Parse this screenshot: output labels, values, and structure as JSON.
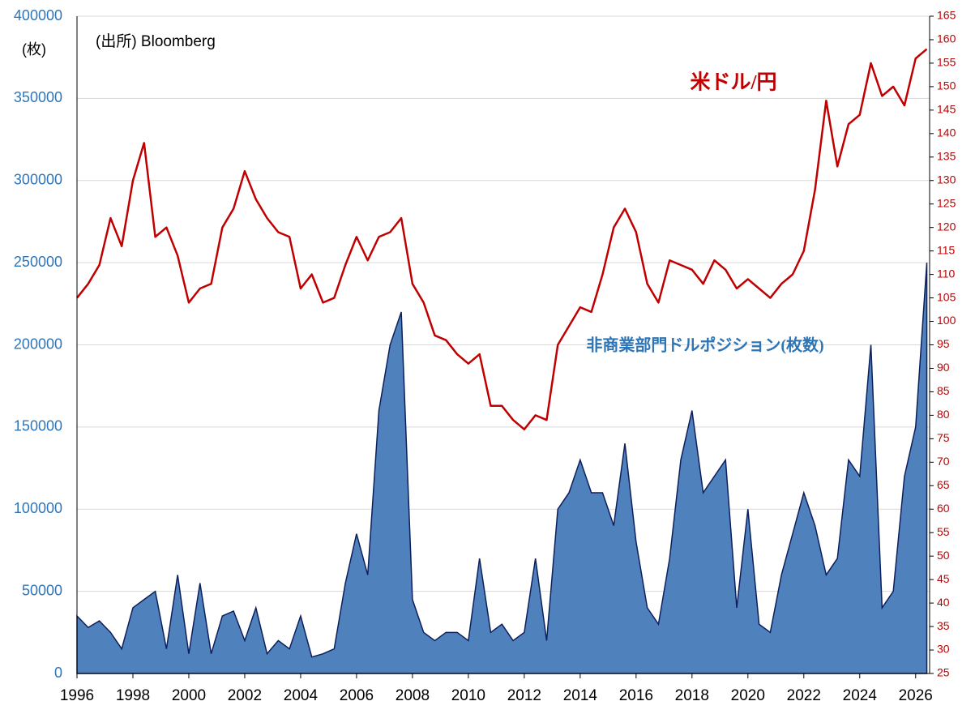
{
  "chart_data": {
    "type": "area",
    "annotations": [
      "(出所) Bloomberg",
      "(枚)",
      "米ドル/円",
      "非商業部門ドルポジション(枚数)"
    ],
    "x": [
      1996.0,
      1996.4,
      1996.8,
      1997.2,
      1997.6,
      1998.0,
      1998.4,
      1998.8,
      1999.2,
      1999.6,
      2000.0,
      2000.4,
      2000.8,
      2001.2,
      2001.6,
      2002.0,
      2002.4,
      2002.8,
      2003.2,
      2003.6,
      2004.0,
      2004.4,
      2004.8,
      2005.2,
      2005.6,
      2006.0,
      2006.4,
      2006.8,
      2007.2,
      2007.6,
      2008.0,
      2008.4,
      2008.8,
      2009.2,
      2009.6,
      2010.0,
      2010.4,
      2010.8,
      2011.2,
      2011.6,
      2012.0,
      2012.4,
      2012.8,
      2013.2,
      2013.6,
      2014.0,
      2014.4,
      2014.8,
      2015.2,
      2015.6,
      2016.0,
      2016.4,
      2016.8,
      2017.2,
      2017.6,
      2018.0,
      2018.4,
      2018.8,
      2019.2,
      2019.6,
      2020.0,
      2020.4,
      2020.8,
      2021.2,
      2021.6,
      2022.0,
      2022.4,
      2022.8,
      2023.2,
      2023.6,
      2024.0,
      2024.4,
      2024.8,
      2025.2,
      2025.6,
      2026.0,
      2026.4
    ],
    "series": [
      {
        "name": "非商業部門ドルポジション(枚数)",
        "type": "area",
        "color": "#4f81bd",
        "edge": "#0d1f5c",
        "values": [
          35000,
          28000,
          32000,
          25000,
          15000,
          40000,
          45000,
          50000,
          15000,
          60000,
          12000,
          55000,
          12000,
          35000,
          38000,
          20000,
          40000,
          12000,
          20000,
          15000,
          35000,
          10000,
          12000,
          15000,
          55000,
          85000,
          60000,
          160000,
          200000,
          220000,
          45000,
          25000,
          20000,
          25000,
          25000,
          20000,
          70000,
          25000,
          30000,
          20000,
          25000,
          70000,
          20000,
          100000,
          110000,
          130000,
          110000,
          110000,
          90000,
          140000,
          80000,
          40000,
          30000,
          70000,
          130000,
          160000,
          110000,
          120000,
          130000,
          40000,
          100000,
          30000,
          25000,
          60000,
          85000,
          110000,
          90000,
          60000,
          70000,
          130000,
          120000,
          200000,
          40000,
          50000,
          120000,
          150000,
          250000
        ]
      },
      {
        "name": "米ドル/円",
        "type": "line",
        "axis": "y2",
        "color": "#c00000",
        "values": [
          105,
          108,
          112,
          122,
          116,
          130,
          138,
          118,
          120,
          114,
          104,
          107,
          108,
          120,
          124,
          132,
          126,
          122,
          119,
          118,
          107,
          110,
          104,
          105,
          112,
          118,
          113,
          118,
          119,
          122,
          108,
          104,
          97,
          96,
          93,
          91,
          93,
          82,
          82,
          79,
          77,
          80,
          79,
          95,
          99,
          103,
          102,
          110,
          120,
          124,
          119,
          108,
          104,
          113,
          112,
          111,
          108,
          113,
          111,
          107,
          109,
          107,
          105,
          108,
          110,
          115,
          128,
          147,
          133,
          142,
          144,
          155,
          148,
          150,
          146,
          156,
          158
        ]
      }
    ],
    "xlim": [
      1996,
      2026.5
    ],
    "xticks": [
      1996,
      1998,
      2000,
      2002,
      2004,
      2006,
      2008,
      2010,
      2012,
      2014,
      2016,
      2018,
      2020,
      2022,
      2024,
      2026
    ],
    "ylim": [
      0,
      400000
    ],
    "yticks": [
      0,
      50000,
      100000,
      150000,
      200000,
      250000,
      300000,
      350000,
      400000
    ],
    "y2lim": [
      25,
      165
    ],
    "y2ticks": [
      25,
      30,
      35,
      40,
      45,
      50,
      55,
      60,
      65,
      70,
      75,
      80,
      85,
      90,
      95,
      100,
      105,
      110,
      115,
      120,
      125,
      130,
      135,
      140,
      145,
      150,
      155,
      160,
      165
    ],
    "grid": true
  }
}
